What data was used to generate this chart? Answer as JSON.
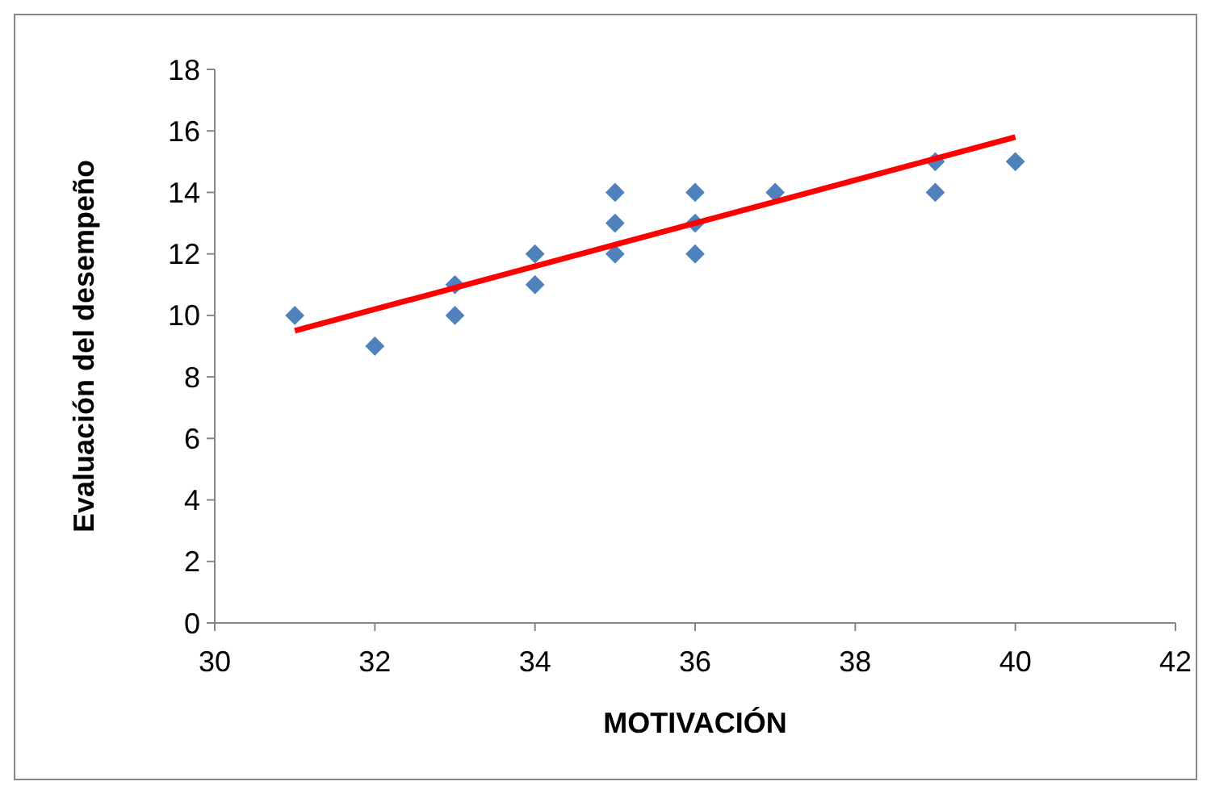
{
  "chart_data": {
    "type": "scatter",
    "xlabel": "MOTIVACIÓN",
    "ylabel": "Evaluación del desempeño",
    "xlim": [
      30,
      42
    ],
    "xticks": [
      30,
      32,
      34,
      36,
      38,
      40,
      42
    ],
    "ylim": [
      0,
      18
    ],
    "yticks": [
      0,
      2,
      4,
      6,
      8,
      10,
      12,
      14,
      16,
      18
    ],
    "grid": false,
    "marker": "diamond",
    "series": [
      {
        "color": "#4f81bd",
        "x": [
          31,
          32,
          33,
          33,
          34,
          34,
          35,
          35,
          35,
          36,
          36,
          36,
          37,
          39,
          39,
          40
        ],
        "values": [
          10,
          9,
          11,
          10,
          12,
          11,
          14,
          13,
          12,
          14,
          13,
          12,
          14,
          15,
          14,
          15
        ]
      },
      {
        "type": "line",
        "color": "#ff0000",
        "marker": "none",
        "x": [
          31,
          40
        ],
        "values": [
          9.5,
          15.8
        ]
      }
    ]
  }
}
